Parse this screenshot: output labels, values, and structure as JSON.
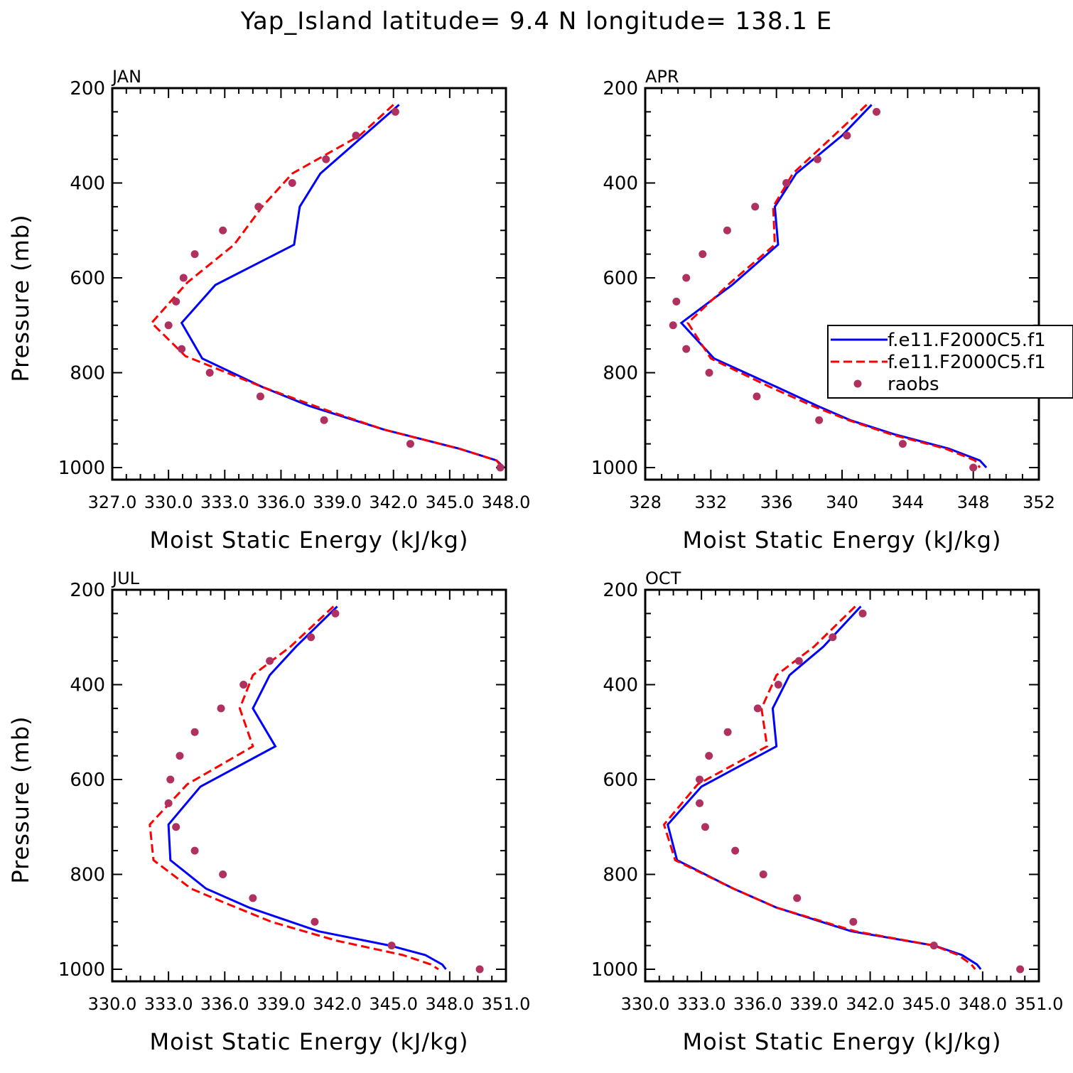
{
  "figure": {
    "title": "Yap_Island  latitude= 9.4 N longitude= 138.1 E",
    "colors": {
      "model1": "#0000ff",
      "model2": "#ff0000",
      "raobs": "#b03060",
      "axes": "#000000"
    }
  },
  "legend": {
    "panel": "APR",
    "entries": [
      {
        "label": "f.e11.F2000C5.f1",
        "style": "solid",
        "color": "#0000ff"
      },
      {
        "label": "f.e11.F2000C5.f1",
        "style": "dashed",
        "color": "#ff0000"
      },
      {
        "label": "raobs",
        "style": "marker",
        "color": "#b03060"
      }
    ]
  },
  "chart_data": [
    {
      "type": "line",
      "panel_label": "JAN",
      "xlabel": "Moist Static Energy (kJ/kg)",
      "ylabel": "Pressure (mb)",
      "xlim": [
        327,
        348
      ],
      "ylim": [
        1000,
        200
      ],
      "xticks": [
        327,
        330,
        333,
        336,
        339,
        342,
        345,
        348
      ],
      "xtick_labels": [
        "327.0",
        "330.0",
        "333.0",
        "336.0",
        "339.0",
        "342.0",
        "345.0",
        "348.0"
      ],
      "yticks": [
        200,
        400,
        600,
        800,
        1000
      ],
      "ytick_labels": [
        "200",
        "400",
        "600",
        "800",
        "1000"
      ],
      "series": [
        {
          "name": "f.e11.F2000C5.f1",
          "style": "solid",
          "color": "#0000ff",
          "p": [
            235,
            380,
            450,
            530,
            615,
            695,
            770,
            830,
            870,
            920,
            960,
            985,
            1000
          ],
          "x": [
            342.3,
            338.1,
            337.0,
            336.7,
            332.5,
            330.7,
            331.8,
            335.0,
            337.5,
            341.5,
            345.5,
            347.5,
            347.9
          ]
        },
        {
          "name": "f.e11.F2000C5.f1",
          "style": "dashed",
          "color": "#ff0000",
          "p": [
            235,
            300,
            380,
            450,
            530,
            610,
            695,
            765,
            830,
            880,
            920,
            960,
            985,
            1000
          ],
          "x": [
            342.0,
            340.2,
            336.6,
            335.0,
            333.5,
            331.0,
            329.1,
            330.9,
            335.0,
            338.5,
            341.5,
            345.5,
            347.5,
            347.8
          ]
        },
        {
          "name": "raobs",
          "style": "marker",
          "color": "#b03060",
          "p": [
            250,
            300,
            350,
            400,
            450,
            500,
            550,
            600,
            650,
            700,
            750,
            800,
            850,
            900,
            950,
            1000
          ],
          "x": [
            342.1,
            340.0,
            338.4,
            336.6,
            334.8,
            332.9,
            331.4,
            330.8,
            330.4,
            330.0,
            330.7,
            332.2,
            334.9,
            338.3,
            342.9,
            347.7
          ]
        }
      ]
    },
    {
      "type": "line",
      "panel_label": "APR",
      "xlabel": "Moist Static Energy (kJ/kg)",
      "ylabel": "",
      "xlim": [
        328,
        352
      ],
      "ylim": [
        1000,
        200
      ],
      "xticks": [
        328,
        332,
        336,
        340,
        344,
        348,
        352
      ],
      "xtick_labels": [
        "328",
        "332",
        "336",
        "340",
        "344",
        "348",
        "352"
      ],
      "yticks": [
        200,
        400,
        600,
        800,
        1000
      ],
      "ytick_labels": [
        "200",
        "400",
        "600",
        "800",
        "1000"
      ],
      "series": [
        {
          "name": "f.e11.F2000C5.f1",
          "style": "solid",
          "color": "#0000ff",
          "p": [
            235,
            300,
            380,
            450,
            530,
            615,
            695,
            770,
            830,
            870,
            900,
            930,
            960,
            985,
            1000
          ],
          "x": [
            341.8,
            340.0,
            337.2,
            335.9,
            336.1,
            333.3,
            330.2,
            332.2,
            336.0,
            338.5,
            340.5,
            343.2,
            346.5,
            348.4,
            348.8
          ]
        },
        {
          "name": "f.e11.F2000C5.f1",
          "style": "dashed",
          "color": "#ff0000",
          "p": [
            235,
            300,
            380,
            450,
            530,
            610,
            695,
            770,
            830,
            870,
            900,
            930,
            960,
            985,
            1000
          ],
          "x": [
            341.5,
            339.5,
            337.0,
            335.8,
            335.9,
            333.2,
            330.6,
            332.0,
            335.6,
            338.2,
            340.4,
            343.0,
            346.3,
            348.1,
            348.4
          ]
        },
        {
          "name": "raobs",
          "style": "marker",
          "color": "#b03060",
          "p": [
            250,
            300,
            350,
            400,
            450,
            500,
            550,
            600,
            650,
            700,
            750,
            800,
            850,
            900,
            950,
            1000
          ],
          "x": [
            342.1,
            340.3,
            338.5,
            336.6,
            334.7,
            333.0,
            331.5,
            330.5,
            329.9,
            329.7,
            330.5,
            331.9,
            334.8,
            338.6,
            343.7,
            348.0
          ]
        }
      ]
    },
    {
      "type": "line",
      "panel_label": "JUL",
      "xlabel": "Moist Static Energy (kJ/kg)",
      "ylabel": "Pressure (mb)",
      "xlim": [
        330,
        351
      ],
      "ylim": [
        1000,
        200
      ],
      "xticks": [
        330,
        333,
        336,
        339,
        342,
        345,
        348,
        351
      ],
      "xtick_labels": [
        "330.0",
        "333.0",
        "336.0",
        "339.0",
        "342.0",
        "345.0",
        "348.0",
        "351.0"
      ],
      "yticks": [
        200,
        400,
        600,
        800,
        1000
      ],
      "ytick_labels": [
        "200",
        "400",
        "600",
        "800",
        "1000"
      ],
      "series": [
        {
          "name": "f.e11.F2000C5.f1",
          "style": "solid",
          "color": "#0000ff",
          "p": [
            235,
            320,
            380,
            450,
            530,
            615,
            695,
            770,
            830,
            870,
            920,
            950,
            970,
            990,
            1000
          ],
          "x": [
            342.0,
            339.8,
            338.4,
            337.5,
            338.7,
            334.7,
            333.0,
            333.1,
            335.0,
            337.3,
            341.0,
            344.8,
            346.7,
            347.6,
            347.8
          ]
        },
        {
          "name": "f.e11.F2000C5.f1",
          "style": "dashed",
          "color": "#ff0000",
          "p": [
            235,
            320,
            380,
            450,
            530,
            610,
            695,
            770,
            830,
            860,
            900,
            940,
            970,
            990,
            1000
          ],
          "x": [
            341.8,
            339.5,
            337.5,
            336.8,
            337.5,
            334.0,
            332.0,
            332.2,
            334.2,
            336.0,
            338.5,
            342.0,
            345.5,
            347.0,
            347.4
          ]
        },
        {
          "name": "raobs",
          "style": "marker",
          "color": "#b03060",
          "p": [
            250,
            300,
            350,
            400,
            450,
            500,
            550,
            600,
            650,
            700,
            750,
            800,
            850,
            900,
            950,
            1000
          ],
          "x": [
            341.9,
            340.6,
            338.4,
            337.0,
            335.8,
            334.4,
            333.6,
            333.1,
            333.0,
            333.4,
            334.4,
            335.9,
            337.5,
            340.8,
            344.9,
            349.6
          ]
        }
      ]
    },
    {
      "type": "line",
      "panel_label": "OCT",
      "xlabel": "Moist Static Energy (kJ/kg)",
      "ylabel": "",
      "xlim": [
        330,
        351
      ],
      "ylim": [
        1000,
        200
      ],
      "xticks": [
        330,
        333,
        336,
        339,
        342,
        345,
        348,
        351
      ],
      "xtick_labels": [
        "330.0",
        "333.0",
        "336.0",
        "339.0",
        "342.0",
        "345.0",
        "348.0",
        "351.0"
      ],
      "yticks": [
        200,
        400,
        600,
        800,
        1000
      ],
      "ytick_labels": [
        "200",
        "400",
        "600",
        "800",
        "1000"
      ],
      "series": [
        {
          "name": "f.e11.F2000C5.f1",
          "style": "solid",
          "color": "#0000ff",
          "p": [
            235,
            320,
            380,
            450,
            530,
            615,
            695,
            770,
            830,
            870,
            920,
            950,
            970,
            990,
            1000
          ],
          "x": [
            341.5,
            339.5,
            337.7,
            336.8,
            337.0,
            333.0,
            331.2,
            331.7,
            334.7,
            337.0,
            341.0,
            345.4,
            346.9,
            347.7,
            347.9
          ]
        },
        {
          "name": "f.e11.F2000C5.f1",
          "style": "dashed",
          "color": "#ff0000",
          "p": [
            235,
            320,
            380,
            450,
            530,
            610,
            695,
            770,
            830,
            870,
            920,
            950,
            970,
            990,
            1000
          ],
          "x": [
            341.2,
            339.0,
            337.0,
            336.2,
            336.5,
            332.8,
            331.0,
            331.6,
            334.7,
            337.0,
            341.2,
            345.4,
            346.7,
            347.4,
            347.6
          ]
        },
        {
          "name": "raobs",
          "style": "marker",
          "color": "#b03060",
          "p": [
            250,
            300,
            350,
            400,
            450,
            500,
            550,
            600,
            650,
            700,
            750,
            800,
            850,
            900,
            950,
            1000
          ],
          "x": [
            341.6,
            340.0,
            338.2,
            337.1,
            336.0,
            334.4,
            333.4,
            332.9,
            332.9,
            333.2,
            334.8,
            336.3,
            338.1,
            341.1,
            345.4,
            350.0
          ]
        }
      ]
    }
  ]
}
